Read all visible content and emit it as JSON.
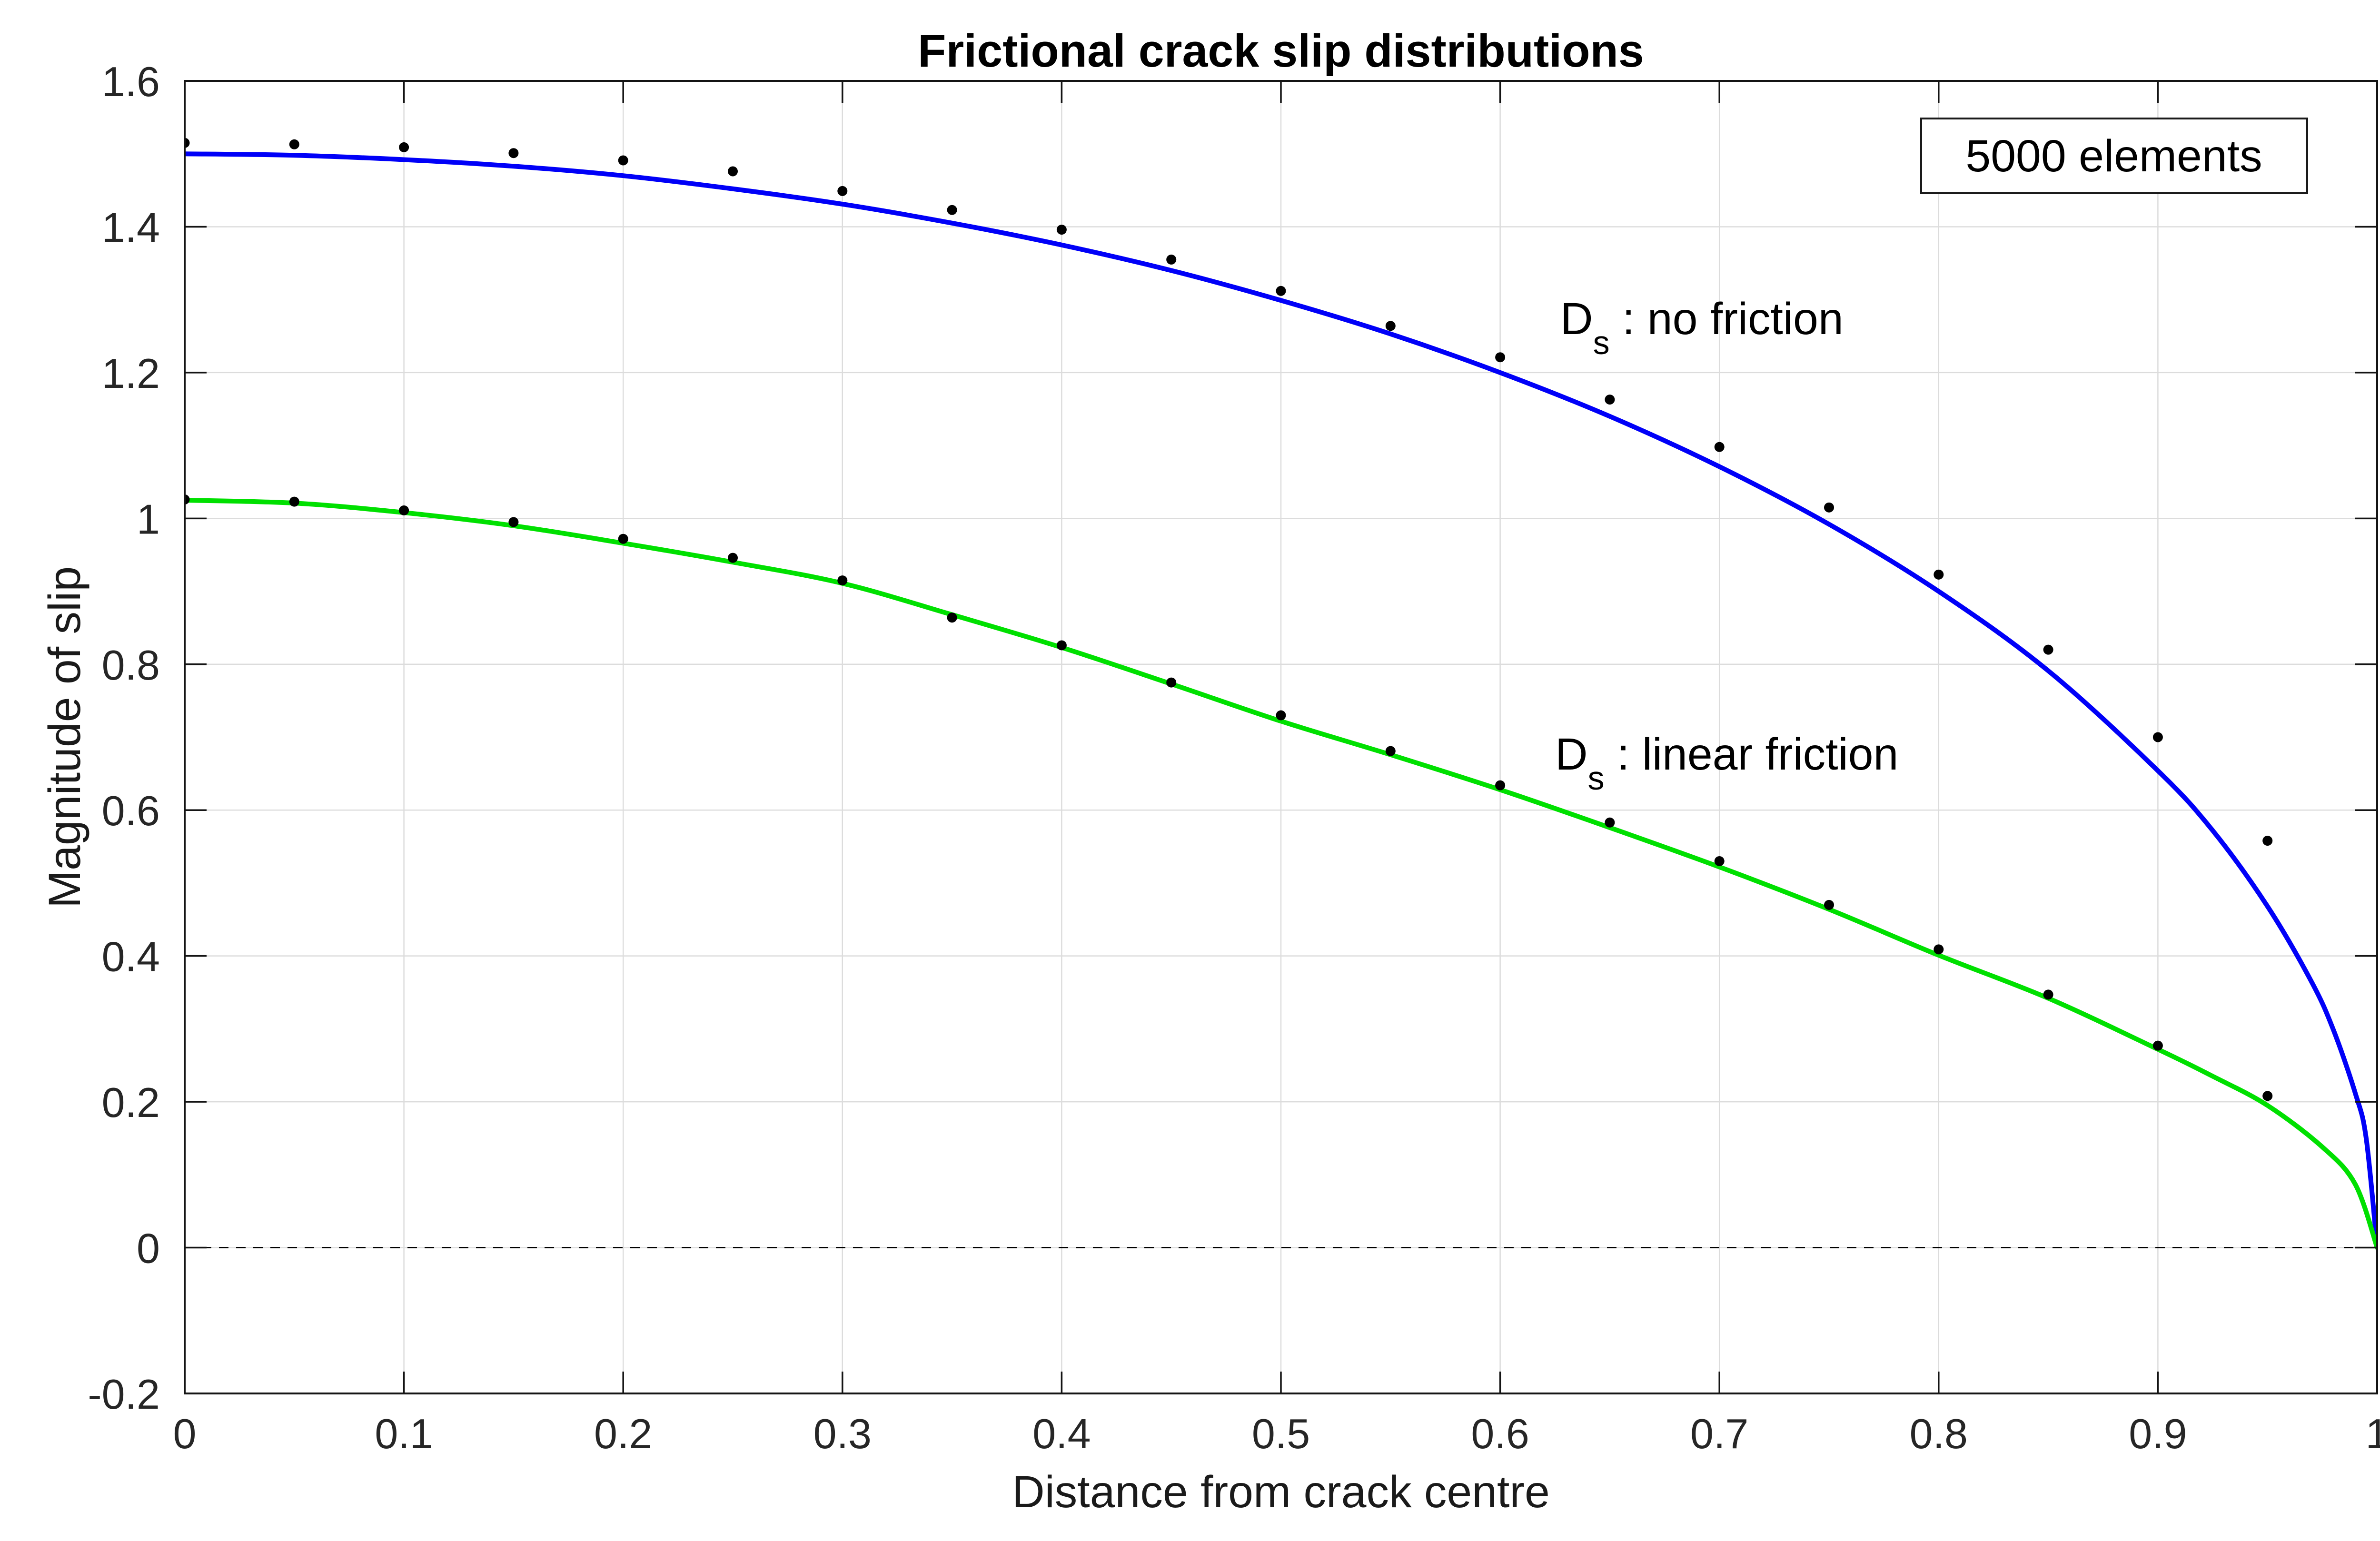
{
  "title": "Frictional crack slip distributions",
  "legend_box": {
    "label": "5000 elements"
  },
  "annotations": [
    {
      "main": "D",
      "sub": "s",
      "rest": " : no friction"
    },
    {
      "main": "D",
      "sub": "s",
      "rest": " : linear friction"
    }
  ],
  "colors": {
    "no_friction_curve": "#0000f8",
    "linear_friction_curve": "#00e000",
    "marker": "#000000",
    "grid": "#dcdcdc",
    "axis": "#141414",
    "zero_line": "#000000",
    "background": "#ffffff"
  },
  "chart_data": {
    "type": "line",
    "title": "Frictional crack slip distributions",
    "xlabel": "Distance from crack centre",
    "ylabel": "Magnitude of slip",
    "xlim": [
      0,
      1
    ],
    "ylim": [
      -0.2,
      1.6
    ],
    "xticks": [
      0,
      0.1,
      0.2,
      0.3,
      0.4,
      0.5,
      0.6,
      0.7,
      0.8,
      0.9,
      1
    ],
    "xtick_labels": [
      "0",
      "0.1",
      "0.2",
      "0.3",
      "0.4",
      "0.5",
      "0.6",
      "0.7",
      "0.8",
      "0.9",
      "1"
    ],
    "yticks": [
      -0.2,
      0,
      0.2,
      0.4,
      0.6,
      0.8,
      1,
      1.2,
      1.4,
      1.6
    ],
    "ytick_labels": [
      "-0.2",
      "0",
      "0.2",
      "0.4",
      "0.6",
      "0.8",
      "1",
      "1.2",
      "1.4",
      "1.6"
    ],
    "grid": true,
    "legend_position": "top-right",
    "zero_line": {
      "y": 0,
      "style": "dashed",
      "color": "#000000"
    },
    "series": [
      {
        "name": "Ds analytic no friction",
        "type": "line",
        "color": "#0000f8",
        "width": 10,
        "x": [
          0,
          0.05,
          0.1,
          0.15,
          0.2,
          0.25,
          0.3,
          0.35,
          0.4,
          0.45,
          0.5,
          0.55,
          0.6,
          0.65,
          0.7,
          0.75,
          0.8,
          0.85,
          0.9,
          0.925,
          0.95,
          0.97,
          0.98,
          0.99,
          0.995,
          1
        ],
        "y": [
          1.5,
          1.498,
          1.492,
          1.483,
          1.47,
          1.452,
          1.431,
          1.405,
          1.375,
          1.34,
          1.299,
          1.253,
          1.2,
          1.14,
          1.071,
          0.992,
          0.9,
          0.791,
          0.654,
          0.572,
          0.468,
          0.365,
          0.299,
          0.212,
          0.15,
          0
        ]
      },
      {
        "name": "Ds analytic linear friction",
        "type": "line",
        "color": "#00e000",
        "width": 10,
        "x": [
          0,
          0.05,
          0.1,
          0.15,
          0.2,
          0.25,
          0.3,
          0.35,
          0.4,
          0.45,
          0.5,
          0.55,
          0.6,
          0.65,
          0.7,
          0.75,
          0.8,
          0.85,
          0.9,
          0.925,
          0.95,
          0.975,
          0.99,
          1
        ],
        "y": [
          1.025,
          1.021,
          1.008,
          0.99,
          0.966,
          0.94,
          0.911,
          0.868,
          0.823,
          0.773,
          0.722,
          0.676,
          0.628,
          0.576,
          0.522,
          0.464,
          0.401,
          0.342,
          0.272,
          0.235,
          0.195,
          0.138,
          0.087,
          0
        ]
      },
      {
        "name": "Ds numerical no friction",
        "type": "scatter",
        "color": "#000000",
        "marker_radius": 10.5,
        "x": [
          0,
          0.05,
          0.1,
          0.15,
          0.2,
          0.25,
          0.3,
          0.35,
          0.4,
          0.45,
          0.5,
          0.55,
          0.6,
          0.65,
          0.7,
          0.75,
          0.8,
          0.85,
          0.9,
          0.95
        ],
        "y": [
          1.515,
          1.513,
          1.509,
          1.501,
          1.491,
          1.476,
          1.449,
          1.423,
          1.396,
          1.355,
          1.312,
          1.264,
          1.221,
          1.163,
          1.098,
          1.015,
          0.923,
          0.82,
          0.7,
          0.558
        ]
      },
      {
        "name": "Ds numerical linear friction",
        "type": "scatter",
        "color": "#000000",
        "marker_radius": 10.5,
        "x": [
          0,
          0.05,
          0.1,
          0.15,
          0.2,
          0.25,
          0.3,
          0.35,
          0.4,
          0.45,
          0.5,
          0.55,
          0.6,
          0.65,
          0.7,
          0.75,
          0.8,
          0.85,
          0.9,
          0.95
        ],
        "y": [
          1.026,
          1.023,
          1.011,
          0.995,
          0.972,
          0.946,
          0.915,
          0.864,
          0.826,
          0.775,
          0.73,
          0.681,
          0.634,
          0.583,
          0.53,
          0.47,
          0.409,
          0.347,
          0.277,
          0.208
        ]
      }
    ]
  }
}
